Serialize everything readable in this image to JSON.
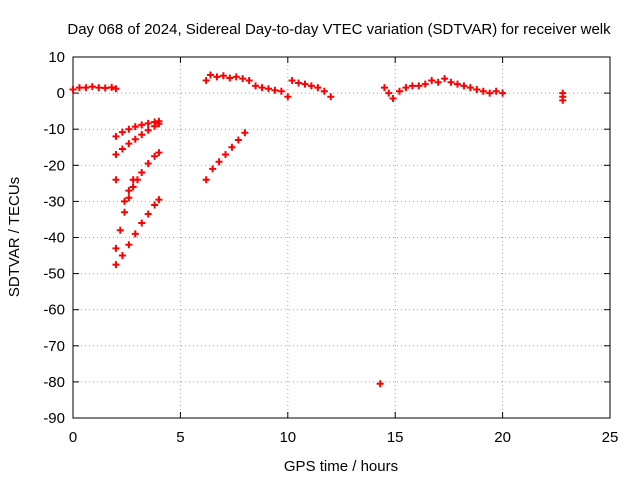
{
  "chart_data": {
    "type": "scatter",
    "title": "Day 068 of 2024, Sidereal Day-to-day VTEC variation (SDTVAR) for receiver welk",
    "xlabel": "GPS time / hours",
    "ylabel": "SDTVAR / TECUs",
    "xlim": [
      0,
      25
    ],
    "ylim": [
      -90,
      10
    ],
    "xticks": [
      0,
      5,
      10,
      15,
      20,
      25
    ],
    "xtick_labels": [
      "0",
      "5",
      "10",
      "15",
      "20",
      "25"
    ],
    "yticks": [
      10,
      0,
      -10,
      -20,
      -30,
      -40,
      -50,
      -60,
      -70,
      -80,
      -90
    ],
    "ytick_labels": [
      "10",
      "0",
      "-10",
      "-20",
      "-30",
      "-40",
      "-50",
      "-60",
      "-70",
      "-80",
      "-90"
    ],
    "grid": true,
    "marker": "+",
    "series": [
      {
        "name": "SDTVAR",
        "color": "#ff0000",
        "points": [
          [
            0.0,
            1.0
          ],
          [
            0.3,
            1.5
          ],
          [
            0.6,
            1.5
          ],
          [
            0.9,
            1.8
          ],
          [
            1.2,
            1.5
          ],
          [
            1.5,
            1.4
          ],
          [
            1.8,
            1.6
          ],
          [
            2.0,
            1.2
          ],
          [
            2.0,
            -12.0
          ],
          [
            2.3,
            -10.8
          ],
          [
            2.6,
            -10.0
          ],
          [
            2.9,
            -9.3
          ],
          [
            3.2,
            -8.8
          ],
          [
            3.5,
            -8.4
          ],
          [
            3.8,
            -8.0
          ],
          [
            4.0,
            -7.8
          ],
          [
            2.0,
            -17.0
          ],
          [
            2.3,
            -15.5
          ],
          [
            2.6,
            -14.0
          ],
          [
            2.9,
            -12.8
          ],
          [
            3.2,
            -11.5
          ],
          [
            3.5,
            -10.3
          ],
          [
            3.8,
            -9.2
          ],
          [
            4.0,
            -8.5
          ],
          [
            2.0,
            -24.0
          ],
          [
            2.0,
            -43.0
          ],
          [
            2.2,
            -38.0
          ],
          [
            2.4,
            -33.0
          ],
          [
            2.6,
            -29.0
          ],
          [
            2.8,
            -26.0
          ],
          [
            3.0,
            -24.0
          ],
          [
            3.2,
            -22.0
          ],
          [
            3.5,
            -19.5
          ],
          [
            3.8,
            -17.5
          ],
          [
            4.0,
            -16.5
          ],
          [
            2.0,
            -47.5
          ],
          [
            2.3,
            -45.0
          ],
          [
            2.6,
            -42.0
          ],
          [
            2.9,
            -39.0
          ],
          [
            3.2,
            -36.0
          ],
          [
            3.5,
            -33.5
          ],
          [
            3.8,
            -31.0
          ],
          [
            4.0,
            -29.5
          ],
          [
            2.4,
            -30.0
          ],
          [
            2.6,
            -27.0
          ],
          [
            2.8,
            -24.0
          ],
          [
            6.2,
            -24.0
          ],
          [
            6.5,
            -21.0
          ],
          [
            6.8,
            -19.0
          ],
          [
            7.1,
            -17.0
          ],
          [
            7.4,
            -15.0
          ],
          [
            7.7,
            -13.0
          ],
          [
            8.0,
            -11.0
          ],
          [
            6.2,
            3.5
          ],
          [
            6.4,
            5.0
          ],
          [
            6.7,
            4.5
          ],
          [
            7.0,
            4.8
          ],
          [
            7.3,
            4.2
          ],
          [
            7.6,
            4.5
          ],
          [
            7.9,
            4.0
          ],
          [
            8.2,
            3.5
          ],
          [
            8.5,
            2.0
          ],
          [
            8.8,
            1.5
          ],
          [
            9.1,
            1.2
          ],
          [
            9.4,
            0.8
          ],
          [
            9.7,
            0.5
          ],
          [
            10.0,
            -1.0
          ],
          [
            10.2,
            3.5
          ],
          [
            10.5,
            2.8
          ],
          [
            10.8,
            2.5
          ],
          [
            11.1,
            2.0
          ],
          [
            11.4,
            1.5
          ],
          [
            11.7,
            0.5
          ],
          [
            12.0,
            -1.0
          ],
          [
            14.3,
            -80.5
          ],
          [
            14.5,
            1.5
          ],
          [
            14.7,
            0.0
          ],
          [
            14.9,
            -1.5
          ],
          [
            15.2,
            0.5
          ],
          [
            15.5,
            1.5
          ],
          [
            15.8,
            2.0
          ],
          [
            16.1,
            2.0
          ],
          [
            16.4,
            2.5
          ],
          [
            16.7,
            3.5
          ],
          [
            17.0,
            3.0
          ],
          [
            17.3,
            4.0
          ],
          [
            17.6,
            3.0
          ],
          [
            17.9,
            2.5
          ],
          [
            18.2,
            2.0
          ],
          [
            18.5,
            1.5
          ],
          [
            18.8,
            1.0
          ],
          [
            19.1,
            0.5
          ],
          [
            19.4,
            0.0
          ],
          [
            19.7,
            0.5
          ],
          [
            20.0,
            0.0
          ],
          [
            22.8,
            0.0
          ],
          [
            22.8,
            -1.0
          ],
          [
            22.8,
            -2.0
          ]
        ]
      }
    ]
  }
}
